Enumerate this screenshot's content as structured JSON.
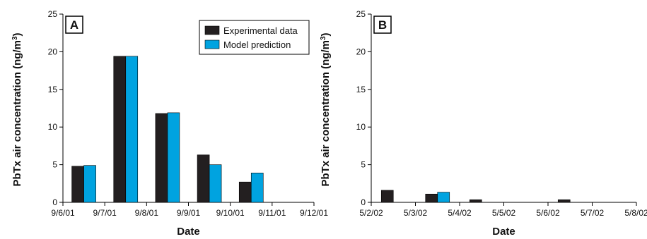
{
  "colors": {
    "experimental": "#231f20",
    "model": "#00a3e0",
    "axis": "#000000"
  },
  "chart_data": [
    {
      "type": "bar",
      "panel_label": "A",
      "categories": [
        "9/6/01",
        "9/7/01",
        "9/8/01",
        "9/9/01",
        "9/10/01",
        "9/11/01",
        "9/12/01"
      ],
      "series": [
        {
          "name": "Experimental data",
          "values": [
            null,
            4.8,
            19.4,
            11.8,
            6.3,
            2.7,
            null
          ]
        },
        {
          "name": "Model prediction",
          "values": [
            null,
            4.9,
            19.4,
            11.9,
            5.0,
            3.9,
            null
          ]
        }
      ],
      "ylim": [
        0,
        25
      ],
      "yticks": [
        0,
        5,
        10,
        15,
        20,
        25
      ],
      "xlabel": "Date",
      "ylabel": "PbTx air concentration (ng/m3)",
      "legend": "top-right",
      "grid": false
    },
    {
      "type": "bar",
      "panel_label": "B",
      "categories": [
        "5/2/02",
        "5/3/02",
        "5/4/02",
        "5/5/02",
        "5/6/02",
        "5/7/02",
        "5/8/02"
      ],
      "series": [
        {
          "name": "Experimental data",
          "values": [
            null,
            1.6,
            1.1,
            0.35,
            0,
            0.35,
            null
          ]
        },
        {
          "name": "Model prediction",
          "values": [
            null,
            0,
            1.35,
            0,
            0,
            0,
            null
          ]
        }
      ],
      "ylim": [
        0,
        25
      ],
      "yticks": [
        0,
        5,
        10,
        15,
        20,
        25
      ],
      "xlabel": "Date",
      "ylabel": "PbTx air concentration (ng/m3)",
      "legend": "none",
      "grid": false
    }
  ]
}
